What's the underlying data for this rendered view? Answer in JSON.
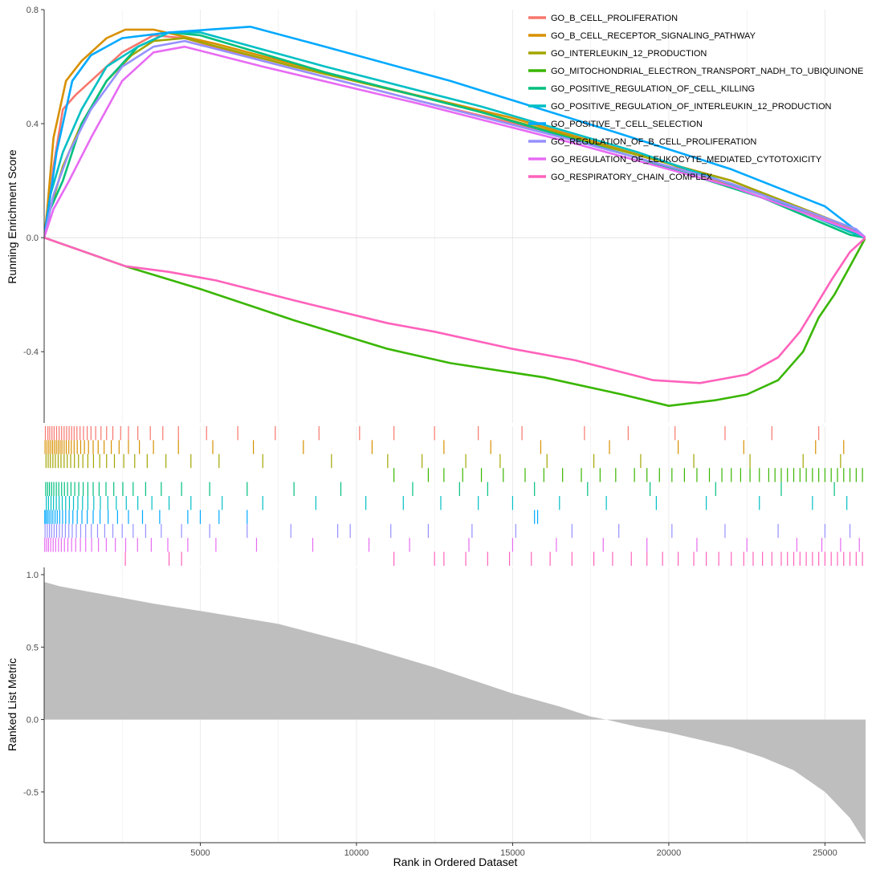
{
  "chart_data": {
    "type": "line",
    "title": "",
    "xlabel": "Rank in Ordered Dataset",
    "x_ticks": [
      5000,
      10000,
      15000,
      20000,
      25000
    ],
    "xlim": [
      1,
      26300
    ],
    "panels": {
      "enrichment": {
        "ylabel": "Running Enrichment Score",
        "ylim": [
          -0.65,
          0.8
        ],
        "y_ticks": [
          -0.4,
          0.0,
          0.4,
          0.8
        ],
        "y_tick_labels": [
          "-0.4",
          "0.0",
          "0.4",
          "0.8"
        ]
      },
      "metric": {
        "ylabel": "Ranked List Metric",
        "ylim": [
          -0.85,
          1.05
        ],
        "y_ticks": [
          -0.5,
          0.0,
          0.5,
          1.0
        ],
        "y_tick_labels": [
          "-0.5",
          "0.0",
          "0.5",
          "1.0"
        ],
        "curve": [
          [
            1,
            0.95
          ],
          [
            500,
            0.92
          ],
          [
            1500,
            0.88
          ],
          [
            2500,
            0.84
          ],
          [
            3500,
            0.8
          ],
          [
            5000,
            0.75
          ],
          [
            7500,
            0.66
          ],
          [
            10000,
            0.52
          ],
          [
            12500,
            0.36
          ],
          [
            15000,
            0.18
          ],
          [
            16500,
            0.09
          ],
          [
            17500,
            0.02
          ],
          [
            18000,
            0.0
          ],
          [
            19000,
            -0.05
          ],
          [
            20000,
            -0.09
          ],
          [
            21000,
            -0.14
          ],
          [
            22000,
            -0.19
          ],
          [
            23000,
            -0.26
          ],
          [
            24000,
            -0.35
          ],
          [
            25000,
            -0.5
          ],
          [
            25800,
            -0.68
          ],
          [
            26300,
            -0.85
          ]
        ]
      }
    },
    "legend_position": "top-right",
    "series": [
      {
        "name": "GO_B_CELL_PROLIFERATION",
        "color": "#F8766D",
        "es_points": [
          [
            1,
            0.0
          ],
          [
            100,
            0.05
          ],
          [
            300,
            0.25
          ],
          [
            600,
            0.45
          ],
          [
            1000,
            0.5
          ],
          [
            1500,
            0.55
          ],
          [
            2500,
            0.65
          ],
          [
            3500,
            0.71
          ],
          [
            4500,
            0.7
          ],
          [
            7000,
            0.62
          ],
          [
            12000,
            0.48
          ],
          [
            17000,
            0.35
          ],
          [
            22000,
            0.2
          ],
          [
            26000,
            0.02
          ],
          [
            26300,
            0.0
          ]
        ],
        "hits": [
          40,
          120,
          180,
          250,
          320,
          400,
          480,
          560,
          640,
          720,
          800,
          880,
          960,
          1050,
          1150,
          1260,
          1380,
          1500,
          1650,
          1820,
          2000,
          2200,
          2450,
          2700,
          3000,
          3400,
          3800,
          4300,
          5200,
          6200,
          7400,
          8800,
          10100,
          11200,
          12500,
          13900,
          15300,
          17300,
          18700,
          20200,
          21800,
          23300,
          24800
        ]
      },
      {
        "name": "GO_B_CELL_RECEPTOR_SIGNALING_PATHWAY",
        "color": "#D89000",
        "es_points": [
          [
            1,
            0.0
          ],
          [
            100,
            0.1
          ],
          [
            300,
            0.35
          ],
          [
            700,
            0.55
          ],
          [
            1200,
            0.62
          ],
          [
            2000,
            0.7
          ],
          [
            2600,
            0.73
          ],
          [
            3500,
            0.73
          ],
          [
            5500,
            0.68
          ],
          [
            10000,
            0.55
          ],
          [
            15000,
            0.42
          ],
          [
            20000,
            0.26
          ],
          [
            25000,
            0.06
          ],
          [
            26300,
            0.0
          ]
        ],
        "hits": [
          30,
          90,
          150,
          210,
          270,
          330,
          390,
          450,
          510,
          570,
          640,
          710,
          790,
          870,
          960,
          1060,
          1170,
          1290,
          1420,
          1570,
          1730,
          1920,
          2150,
          2400,
          2700,
          3050,
          3500,
          4300,
          5400,
          6700,
          8300,
          10500,
          12800,
          14300,
          15900,
          18100,
          20300,
          22400,
          24700,
          25600
        ]
      },
      {
        "name": "GO_INTERLEUKIN_12_PRODUCTION",
        "color": "#A3A500",
        "es_points": [
          [
            1,
            0.0
          ],
          [
            200,
            0.1
          ],
          [
            600,
            0.25
          ],
          [
            1200,
            0.4
          ],
          [
            2000,
            0.55
          ],
          [
            2800,
            0.64
          ],
          [
            3500,
            0.69
          ],
          [
            4500,
            0.7
          ],
          [
            8000,
            0.6
          ],
          [
            13000,
            0.47
          ],
          [
            18000,
            0.32
          ],
          [
            22000,
            0.2
          ],
          [
            25500,
            0.05
          ],
          [
            26300,
            0.0
          ]
        ],
        "hits": [
          60,
          130,
          200,
          280,
          360,
          450,
          540,
          640,
          740,
          850,
          970,
          1100,
          1240,
          1400,
          1580,
          1780,
          2000,
          2250,
          2550,
          2900,
          3300,
          3900,
          4700,
          5600,
          7000,
          9200,
          11000,
          12100,
          13500,
          14600,
          16100,
          17600,
          19100,
          20800,
          22600,
          24300,
          25500
        ]
      },
      {
        "name": "GO_MITOCHONDRIAL_ELECTRON_TRANSPORT_NADH_TO_UBIQUINONE",
        "color": "#39B600",
        "es_points": [
          [
            1,
            0.0
          ],
          [
            2600,
            -0.1
          ],
          [
            5000,
            -0.18
          ],
          [
            8000,
            -0.29
          ],
          [
            11000,
            -0.39
          ],
          [
            13000,
            -0.44
          ],
          [
            16000,
            -0.49
          ],
          [
            18500,
            -0.55
          ],
          [
            20000,
            -0.59
          ],
          [
            21500,
            -0.57
          ],
          [
            22500,
            -0.55
          ],
          [
            23500,
            -0.5
          ],
          [
            24300,
            -0.4
          ],
          [
            24800,
            -0.28
          ],
          [
            25300,
            -0.2
          ],
          [
            25800,
            -0.1
          ],
          [
            26300,
            0.0
          ]
        ],
        "hits": [
          11200,
          12300,
          12800,
          13400,
          14000,
          14700,
          15400,
          16000,
          16600,
          17200,
          17800,
          18300,
          18900,
          19300,
          19700,
          20100,
          20500,
          20900,
          21300,
          21700,
          22000,
          22300,
          22600,
          22900,
          23200,
          23400,
          23600,
          23800,
          24000,
          24200,
          24400,
          24600,
          24800,
          25000,
          25200,
          25400,
          25600,
          25800,
          26000,
          26200
        ]
      },
      {
        "name": "GO_POSITIVE_REGULATION_OF_CELL_KILLING",
        "color": "#00BF7D",
        "es_points": [
          [
            1,
            0.0
          ],
          [
            200,
            0.1
          ],
          [
            600,
            0.2
          ],
          [
            1200,
            0.4
          ],
          [
            2000,
            0.55
          ],
          [
            3000,
            0.67
          ],
          [
            4000,
            0.72
          ],
          [
            5000,
            0.71
          ],
          [
            9000,
            0.58
          ],
          [
            14000,
            0.44
          ],
          [
            19000,
            0.28
          ],
          [
            23000,
            0.14
          ],
          [
            25800,
            0.01
          ],
          [
            26300,
            0.0
          ]
        ],
        "hits": [
          50,
          110,
          170,
          240,
          310,
          390,
          470,
          560,
          650,
          750,
          860,
          980,
          1110,
          1250,
          1400,
          1570,
          1760,
          1980,
          2230,
          2520,
          2850,
          3250,
          3750,
          4400,
          5300,
          6500,
          8000,
          9500,
          11800,
          13300,
          14200,
          15700,
          17400,
          19400,
          21500,
          23600,
          25300
        ]
      },
      {
        "name": "GO_POSITIVE_REGULATION_OF_INTERLEUKIN_12_PRODUCTION",
        "color": "#00BFC4",
        "es_points": [
          [
            1,
            0.0
          ],
          [
            200,
            0.15
          ],
          [
            600,
            0.3
          ],
          [
            1200,
            0.45
          ],
          [
            2000,
            0.6
          ],
          [
            3000,
            0.67
          ],
          [
            4000,
            0.72
          ],
          [
            5000,
            0.72
          ],
          [
            9000,
            0.6
          ],
          [
            14000,
            0.46
          ],
          [
            19000,
            0.3
          ],
          [
            23000,
            0.15
          ],
          [
            25800,
            0.02
          ],
          [
            26300,
            0.0
          ]
        ],
        "hits": [
          70,
          140,
          220,
          300,
          390,
          480,
          580,
          690,
          810,
          940,
          1080,
          1230,
          1400,
          1590,
          1800,
          2040,
          2310,
          2630,
          3000,
          3450,
          4000,
          4700,
          5700,
          7000,
          8700,
          10300,
          11500,
          12700,
          13900,
          15000,
          16500,
          18000,
          19600,
          21200,
          22900,
          24600,
          25700
        ]
      },
      {
        "name": "GO_POSITIVE_T_CELL_SELECTION",
        "color": "#00A9FF",
        "es_points": [
          [
            1,
            0.0
          ],
          [
            400,
            0.3
          ],
          [
            900,
            0.55
          ],
          [
            1500,
            0.64
          ],
          [
            2500,
            0.7
          ],
          [
            4000,
            0.72
          ],
          [
            6600,
            0.74
          ],
          [
            9000,
            0.67
          ],
          [
            13000,
            0.55
          ],
          [
            18000,
            0.38
          ],
          [
            22000,
            0.24
          ],
          [
            25000,
            0.11
          ],
          [
            26300,
            0.0
          ]
        ],
        "hits": [
          20,
          60,
          110,
          160,
          220,
          280,
          350,
          420,
          500,
          590,
          690,
          800,
          920,
          1060,
          1210,
          1380,
          1570,
          1790,
          2050,
          2350,
          2700,
          3150,
          3700,
          4600,
          5000,
          5600,
          6500,
          15700,
          15800
        ]
      },
      {
        "name": "GO_REGULATION_OF_B_CELL_PROLIFERATION",
        "color": "#9590FF",
        "es_points": [
          [
            1,
            0.0
          ],
          [
            300,
            0.15
          ],
          [
            800,
            0.3
          ],
          [
            1500,
            0.45
          ],
          [
            2500,
            0.6
          ],
          [
            3500,
            0.67
          ],
          [
            4500,
            0.69
          ],
          [
            7000,
            0.62
          ],
          [
            12000,
            0.48
          ],
          [
            17000,
            0.34
          ],
          [
            22000,
            0.19
          ],
          [
            26000,
            0.03
          ],
          [
            26300,
            0.0
          ]
        ],
        "hits": [
          30,
          100,
          170,
          240,
          320,
          400,
          490,
          580,
          680,
          790,
          900,
          1030,
          1170,
          1330,
          1510,
          1710,
          1940,
          2200,
          2500,
          2850,
          3250,
          3750,
          4400,
          5300,
          6500,
          7900,
          9400,
          9800,
          11100,
          12300,
          13700,
          15100,
          16900,
          18400,
          20100,
          21800,
          23500,
          25000,
          25800
        ]
      },
      {
        "name": "GO_REGULATION_OF_LEUKOCYTE_MEDIATED_CYTOTOXICITY",
        "color": "#E76BF3",
        "es_points": [
          [
            1,
            0.0
          ],
          [
            300,
            0.1
          ],
          [
            800,
            0.2
          ],
          [
            1500,
            0.35
          ],
          [
            2500,
            0.55
          ],
          [
            3500,
            0.65
          ],
          [
            4500,
            0.67
          ],
          [
            7000,
            0.6
          ],
          [
            12000,
            0.47
          ],
          [
            17000,
            0.33
          ],
          [
            22000,
            0.18
          ],
          [
            26000,
            0.02
          ],
          [
            26300,
            0.0
          ]
        ],
        "hits": [
          20,
          80,
          140,
          210,
          290,
          370,
          460,
          550,
          650,
          760,
          880,
          1010,
          1160,
          1330,
          1520,
          1740,
          1990,
          2280,
          2610,
          2990,
          3430,
          3960,
          4600,
          5500,
          6800,
          8600,
          10400,
          11700,
          13600,
          15000,
          16400,
          17900,
          19300,
          20900,
          22500,
          24100,
          24900,
          25500,
          26100
        ]
      },
      {
        "name": "GO_RESPIRATORY_CHAIN_COMPLEX",
        "color": "#FF62BC",
        "es_points": [
          [
            1,
            0.0
          ],
          [
            2600,
            -0.1
          ],
          [
            4000,
            -0.12
          ],
          [
            5500,
            -0.15
          ],
          [
            8000,
            -0.22
          ],
          [
            11000,
            -0.3
          ],
          [
            12500,
            -0.33
          ],
          [
            15000,
            -0.39
          ],
          [
            17000,
            -0.43
          ],
          [
            19500,
            -0.5
          ],
          [
            21000,
            -0.51
          ],
          [
            22500,
            -0.48
          ],
          [
            23500,
            -0.42
          ],
          [
            24200,
            -0.33
          ],
          [
            24700,
            -0.24
          ],
          [
            25200,
            -0.15
          ],
          [
            25800,
            -0.05
          ],
          [
            26300,
            0.0
          ]
        ],
        "hits": [
          2600,
          4000,
          4400,
          11200,
          12500,
          12800,
          13500,
          14200,
          14900,
          15600,
          16200,
          16900,
          17600,
          18200,
          18800,
          19300,
          19800,
          20300,
          20800,
          21200,
          21600,
          22000,
          22400,
          22700,
          23000,
          23300,
          23600,
          23800,
          24000,
          24200,
          24400,
          24600,
          24800,
          25000,
          25200,
          25400,
          25600,
          25800,
          26000,
          26200
        ]
      }
    ]
  }
}
